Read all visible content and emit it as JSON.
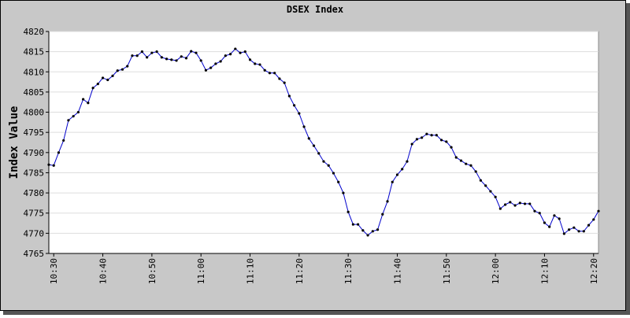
{
  "chart_data": {
    "type": "line",
    "title": "DSEX Index",
    "y_label": "Index Value",
    "x": [
      "10:29",
      "10:30",
      "10:31",
      "10:32",
      "10:33",
      "10:34",
      "10:35",
      "10:36",
      "10:37",
      "10:38",
      "10:39",
      "10:40",
      "10:41",
      "10:42",
      "10:43",
      "10:44",
      "10:45",
      "10:46",
      "10:47",
      "10:48",
      "10:49",
      "10:50",
      "10:51",
      "10:52",
      "10:53",
      "10:54",
      "10:55",
      "10:56",
      "10:57",
      "10:58",
      "10:59",
      "11:00",
      "11:01",
      "11:02",
      "11:03",
      "11:04",
      "11:05",
      "11:06",
      "11:07",
      "11:08",
      "11:09",
      "11:10",
      "11:11",
      "11:12",
      "11:13",
      "11:14",
      "11:15",
      "11:16",
      "11:17",
      "11:18",
      "11:19",
      "11:20",
      "11:21",
      "11:22",
      "11:23",
      "11:24",
      "11:25",
      "11:26",
      "11:27",
      "11:28",
      "11:29",
      "11:30",
      "11:31",
      "11:32",
      "11:33",
      "11:34",
      "11:35",
      "11:36",
      "11:37",
      "11:38",
      "11:39",
      "11:40",
      "11:41",
      "11:42",
      "11:43",
      "11:44",
      "11:45",
      "11:46",
      "11:47",
      "11:48",
      "11:49",
      "11:50",
      "11:51",
      "11:52",
      "11:53",
      "11:54",
      "11:55",
      "11:56",
      "11:57",
      "11:58",
      "11:59",
      "12:00",
      "12:01",
      "12:02",
      "12:03",
      "12:04",
      "12:05",
      "12:06",
      "12:07",
      "12:08",
      "12:09",
      "12:10",
      "12:11",
      "12:12",
      "12:13",
      "12:14",
      "12:15",
      "12:16",
      "12:17",
      "12:18",
      "12:19",
      "12:20",
      "12:21"
    ],
    "values": [
      4787,
      4786.8,
      4790,
      4793,
      4798,
      4799,
      4800,
      4803.2,
      4802.3,
      4806,
      4807,
      4808.5,
      4808,
      4809,
      4810.3,
      4810.6,
      4811.4,
      4814,
      4814,
      4815,
      4813.6,
      4814.7,
      4815,
      4813.6,
      4813.2,
      4813,
      4812.8,
      4813.8,
      4813.4,
      4815.1,
      4814.7,
      4812.8,
      4810.4,
      4811,
      4812,
      4812.6,
      4814,
      4814.4,
      4815.7,
      4814.7,
      4815,
      4813,
      4812,
      4811.8,
      4810.4,
      4809.7,
      4809.7,
      4808.3,
      4807.3,
      4804,
      4801.7,
      4799.7,
      4796.4,
      4793.5,
      4791.7,
      4789.8,
      4787.8,
      4786.8,
      4784.9,
      4782.7,
      4780,
      4775.3,
      4772.2,
      4772.2,
      4770.7,
      4769.5,
      4770.5,
      4770.9,
      4774.7,
      4777.9,
      4782.7,
      4784.5,
      4785.9,
      4787.8,
      4792.1,
      4793.3,
      4793.7,
      4794.6,
      4794.3,
      4794.3,
      4793.1,
      4792.7,
      4791.3,
      4788.8,
      4788,
      4787.2,
      4786.8,
      4785.3,
      4783.1,
      4781.8,
      4780.4,
      4779,
      4776.1,
      4777.1,
      4777.7,
      4776.9,
      4777.5,
      4777.3,
      4777.3,
      4775.5,
      4775,
      4772.6,
      4771.6,
      4774.4,
      4773.6,
      4769.9,
      4770.9,
      4771.4,
      4770.5,
      4770.5,
      4772,
      4773.4,
      4775.5
    ],
    "color": "#0000cc",
    "marker_color": "#000000",
    "xlim": [
      "10:29",
      "12:21"
    ],
    "xticks": [
      "10:30",
      "10:40",
      "10:50",
      "11:00",
      "11:10",
      "11:20",
      "11:30",
      "11:40",
      "11:50",
      "12:00",
      "12:10",
      "12:20"
    ],
    "ylim": [
      4765,
      4820
    ],
    "yticks": [
      4765,
      4770,
      4775,
      4780,
      4785,
      4790,
      4795,
      4800,
      4805,
      4810,
      4815,
      4820
    ],
    "grid": true
  }
}
